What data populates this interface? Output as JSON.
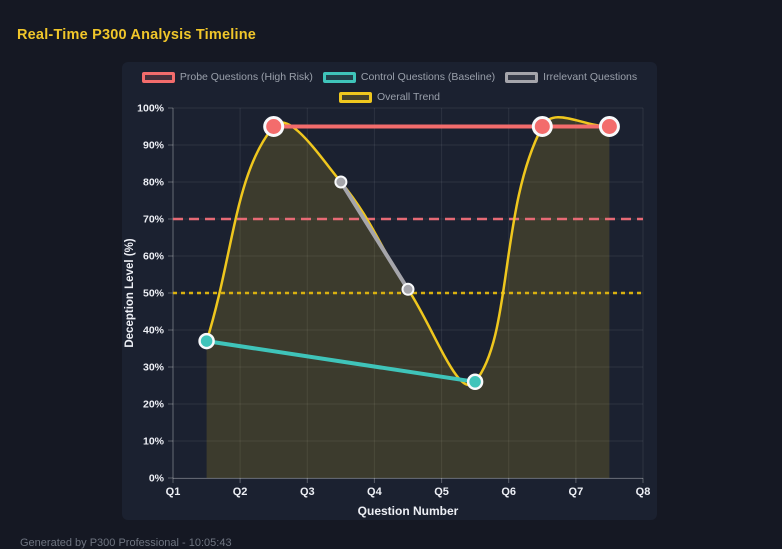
{
  "header": {
    "title": "Real-Time P300 Analysis Timeline"
  },
  "footer": {
    "text": "Generated by P300 Professional - 10:05:43"
  },
  "theme": {
    "page_bg": "#151823",
    "panel_bg": "#1b2130",
    "title_color": "#f0c62a",
    "tick_text_color": "#edeff5",
    "legend_text_color": "#9aa0ab",
    "footer_text_color": "#6e7480",
    "grid_color": "rgba(255,255,255,0.08)",
    "axis_line_color": "rgba(255,255,255,0.28)",
    "point_border_color": "#f8f9fb",
    "fill_opacity": 0.16
  },
  "chart_data": {
    "type": "line",
    "title": "Real-Time P300 Analysis Timeline",
    "xlabel": "Question Number",
    "ylabel": "Deception Level (%)",
    "x_ticks": [
      "Q1",
      "Q2",
      "Q3",
      "Q4",
      "Q5",
      "Q6",
      "Q7",
      "Q8"
    ],
    "x_range": [
      1,
      8
    ],
    "ylim": [
      0,
      100
    ],
    "y_tick_step": 10,
    "y_tick_suffix": "%",
    "grid": true,
    "legend_position": "top",
    "series": [
      {
        "name": "Probe Questions (High Risk)",
        "color": "#f36c6c",
        "line_width": 4,
        "point_radius": 9,
        "point_border": 3,
        "smooth": false,
        "fill": false,
        "points": [
          {
            "x": 2.5,
            "y": 95
          },
          {
            "x": 6.5,
            "y": 95
          },
          {
            "x": 7.5,
            "y": 95
          }
        ]
      },
      {
        "name": "Control Questions (Baseline)",
        "color": "#3fc4ba",
        "line_width": 4,
        "point_radius": 7,
        "point_border": 2.5,
        "smooth": false,
        "fill": false,
        "points": [
          {
            "x": 1.5,
            "y": 37
          },
          {
            "x": 5.5,
            "y": 26
          }
        ]
      },
      {
        "name": "Irrelevant Questions",
        "color": "#a5a5ab",
        "line_width": 4,
        "point_radius": 5.5,
        "point_border": 2,
        "smooth": false,
        "fill": false,
        "points": [
          {
            "x": 3.5,
            "y": 80
          },
          {
            "x": 4.5,
            "y": 51
          }
        ]
      },
      {
        "name": "Overall Trend",
        "color": "#efc71e",
        "line_width": 2.5,
        "point_radius": 0,
        "point_border": 0,
        "smooth": true,
        "fill": true,
        "points": [
          {
            "x": 1.5,
            "y": 37
          },
          {
            "x": 2.5,
            "y": 95
          },
          {
            "x": 3.5,
            "y": 80
          },
          {
            "x": 4.5,
            "y": 51
          },
          {
            "x": 5.5,
            "y": 26
          },
          {
            "x": 6.5,
            "y": 95
          },
          {
            "x": 7.5,
            "y": 95
          }
        ]
      }
    ],
    "annotations": [
      {
        "name": "high-risk-threshold",
        "y": 70,
        "color": "#e66a75",
        "style": "dashed",
        "line_width": 2.5
      },
      {
        "name": "baseline-threshold",
        "y": 50,
        "color": "#d9b110",
        "style": "dotted",
        "line_width": 2.5
      }
    ]
  }
}
